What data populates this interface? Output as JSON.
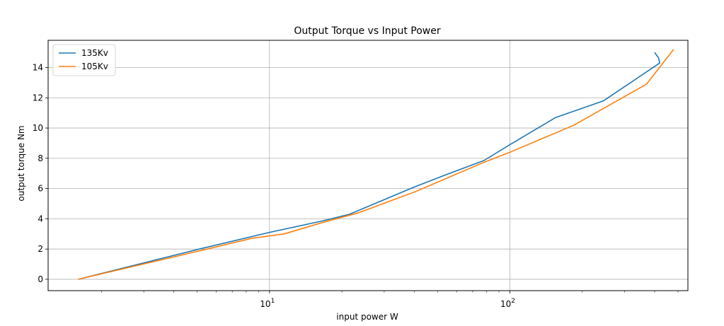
{
  "chart_data": {
    "type": "line",
    "title": "Output Torque vs Input Power",
    "xlabel": "input power W",
    "ylabel": "output torque Nm",
    "xscale": "log",
    "xlim": [
      1.2,
      550
    ],
    "ylim": [
      -0.75,
      15.8
    ],
    "grid": true,
    "legend_position": "top-left",
    "x_ticks": [
      {
        "value": 10,
        "base": "10",
        "exp": "1"
      },
      {
        "value": 100,
        "base": "10",
        "exp": "2"
      }
    ],
    "y_ticks": [
      0,
      2,
      4,
      6,
      8,
      10,
      12,
      14
    ],
    "series": [
      {
        "name": "135Kv",
        "color": "#1f77b4",
        "points": [
          {
            "x": 1.6,
            "y": 0.0
          },
          {
            "x": 5.1,
            "y": 2.0
          },
          {
            "x": 10.0,
            "y": 3.1
          },
          {
            "x": 16.5,
            "y": 3.85
          },
          {
            "x": 21.5,
            "y": 4.3
          },
          {
            "x": 40.0,
            "y": 6.1
          },
          {
            "x": 55.0,
            "y": 6.95
          },
          {
            "x": 78.0,
            "y": 7.85
          },
          {
            "x": 100.0,
            "y": 8.9
          },
          {
            "x": 155.0,
            "y": 10.7
          },
          {
            "x": 245.0,
            "y": 11.8
          },
          {
            "x": 420.0,
            "y": 14.3
          },
          {
            "x": 415.0,
            "y": 14.65
          },
          {
            "x": 400.0,
            "y": 15.0
          }
        ]
      },
      {
        "name": "105Kv",
        "color": "#ff7f0e",
        "points": [
          {
            "x": 1.6,
            "y": 0.0
          },
          {
            "x": 5.5,
            "y": 2.0
          },
          {
            "x": 8.4,
            "y": 2.7
          },
          {
            "x": 11.5,
            "y": 3.0
          },
          {
            "x": 17.0,
            "y": 3.8
          },
          {
            "x": 23.5,
            "y": 4.4
          },
          {
            "x": 40.5,
            "y": 5.8
          },
          {
            "x": 77.0,
            "y": 7.7
          },
          {
            "x": 100.0,
            "y": 8.4
          },
          {
            "x": 185.0,
            "y": 10.2
          },
          {
            "x": 370.0,
            "y": 12.9
          },
          {
            "x": 480.0,
            "y": 15.2
          }
        ]
      }
    ]
  }
}
